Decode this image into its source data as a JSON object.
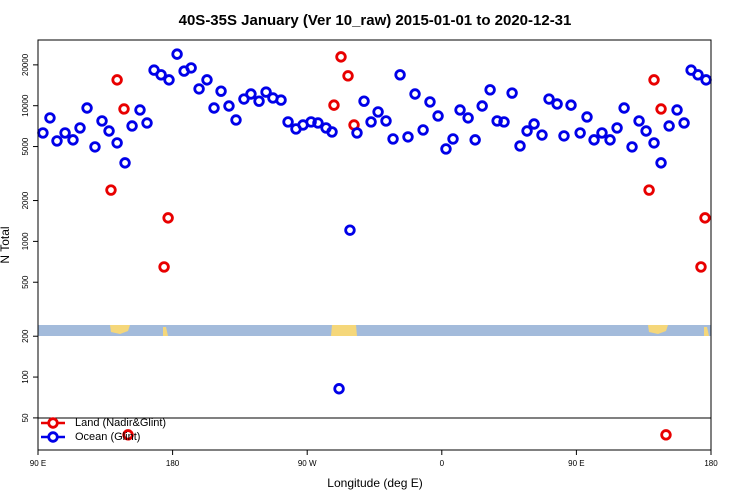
{
  "chart_data": {
    "type": "scatter",
    "title": "40S-35S January (Ver 10_raw)   2015-01-01 to 2020-12-31",
    "x_label": "Longitude (deg E)",
    "y_label": "N Total",
    "log_y": true,
    "legend": "lower left",
    "xlim": [
      90,
      540
    ],
    "ylim": [
      29,
      30500
    ],
    "xticks": [
      {
        "value": 90,
        "label": "90 E"
      },
      {
        "value": 180,
        "label": "180"
      },
      {
        "value": 270,
        "label": "90 W"
      },
      {
        "value": 360,
        "label": "0"
      },
      {
        "value": 450,
        "label": "90 E"
      },
      {
        "value": 540,
        "label": "180"
      }
    ],
    "yticks": [
      50,
      100,
      200,
      500,
      1000,
      2000,
      5000,
      10000,
      20000
    ],
    "series": [
      {
        "name": "Land (Nadir&Glint)",
        "color": "#e80000",
        "x": [
          138.8,
          142.9,
          147.5,
          150.2,
          174.3,
          177.0,
          287.9,
          292.6,
          297.3,
          301.3,
          498.6,
          501.9,
          506.6,
          509.9,
          533.3,
          536.0
        ],
        "values": [
          2390,
          15500,
          9460,
          37.5,
          648,
          1490,
          10100,
          22900,
          16600,
          7210,
          2390,
          15500,
          9460,
          37.5,
          648,
          1490
        ]
      },
      {
        "name": "Ocean (Glint)",
        "color": "#0000e8",
        "x": [
          93.3,
          98.0,
          102.7,
          108.1,
          113.4,
          118.1,
          122.8,
          128.1,
          132.8,
          137.5,
          142.9,
          148.2,
          152.9,
          158.2,
          162.9,
          167.6,
          172.3,
          177.6,
          183.0,
          187.7,
          192.4,
          197.7,
          203.0,
          207.7,
          212.4,
          217.7,
          222.4,
          227.7,
          232.4,
          237.8,
          242.5,
          247.1,
          252.5,
          257.2,
          262.5,
          267.2,
          272.6,
          277.2,
          282.6,
          286.6,
          291.3,
          298.6,
          303.3,
          308.0,
          312.7,
          317.4,
          322.7,
          327.4,
          332.1,
          337.4,
          342.1,
          347.5,
          352.1,
          357.5,
          362.8,
          367.5,
          372.2,
          377.6,
          382.3,
          387.0,
          392.3,
          397.0,
          401.6,
          407.0,
          412.3,
          417.0,
          421.7,
          427.0,
          431.7,
          437.1,
          441.7,
          446.4,
          452.5,
          457.1,
          461.8,
          467.1,
          472.5,
          477.2,
          481.9,
          487.2,
          491.9,
          496.6,
          501.9,
          506.6,
          512.0,
          517.3,
          522.0,
          526.7,
          531.3,
          536.7
        ],
        "values": [
          6300,
          8130,
          5500,
          6300,
          5600,
          6860,
          9620,
          4970,
          7720,
          6510,
          5320,
          3790,
          7090,
          9300,
          7460,
          18300,
          16900,
          15500,
          24000,
          18000,
          19000,
          13300,
          15500,
          9620,
          12800,
          9950,
          7850,
          11200,
          12200,
          10800,
          12600,
          11400,
          11000,
          7590,
          6740,
          7210,
          7590,
          7460,
          6860,
          6410,
          82,
          1210,
          6300,
          10800,
          7590,
          9000,
          7720,
          5690,
          16900,
          5890,
          12200,
          6630,
          10660,
          8400,
          4800,
          5690,
          9300,
          8130,
          5600,
          9950,
          13100,
          7720,
          7590,
          12400,
          5050,
          6510,
          7330,
          6080,
          11200,
          10300,
          5990,
          10100,
          6300,
          8260,
          5600,
          6300,
          5600,
          6860,
          9620,
          4970,
          7720,
          6510,
          5320,
          3790,
          7090,
          9300,
          7460,
          18300,
          16900,
          15500
        ]
      }
    ]
  }
}
